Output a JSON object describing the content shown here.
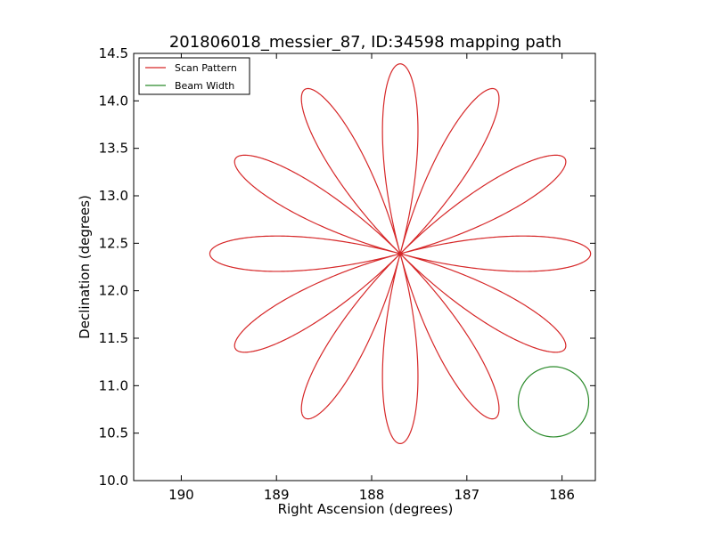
{
  "chart_data": {
    "type": "line",
    "title": "201806018_messier_87, ID:34598 mapping path",
    "xlabel": "Right Ascension (degrees)",
    "ylabel": "Declination (degrees)",
    "xlim": [
      190.5,
      185.65
    ],
    "ylim": [
      10.0,
      14.5
    ],
    "x_inverted": true,
    "grid": false,
    "legend_position": "top-left",
    "x_ticks": [
      190,
      189,
      188,
      187,
      186
    ],
    "x_tick_labels": [
      "190",
      "189",
      "188",
      "187",
      "186"
    ],
    "y_ticks": [
      10.0,
      10.5,
      11.0,
      11.5,
      12.0,
      12.5,
      13.0,
      13.5,
      14.0,
      14.5
    ],
    "y_tick_labels": [
      "10.0",
      "10.5",
      "11.0",
      "11.5",
      "12.0",
      "12.5",
      "13.0",
      "13.5",
      "14.0",
      "14.5"
    ],
    "series": [
      {
        "name": "Scan Pattern",
        "color": "#d62728",
        "shape": "rose",
        "center_ra": 187.7,
        "center_dec": 12.39,
        "petals": 12,
        "radius_deg": 2.0,
        "petal_tilt_deg": 0
      },
      {
        "name": "Beam Width",
        "color": "#2a8a2a",
        "shape": "circle",
        "center_ra": 186.09,
        "center_dec": 10.83,
        "radius_deg": 0.37
      }
    ]
  }
}
